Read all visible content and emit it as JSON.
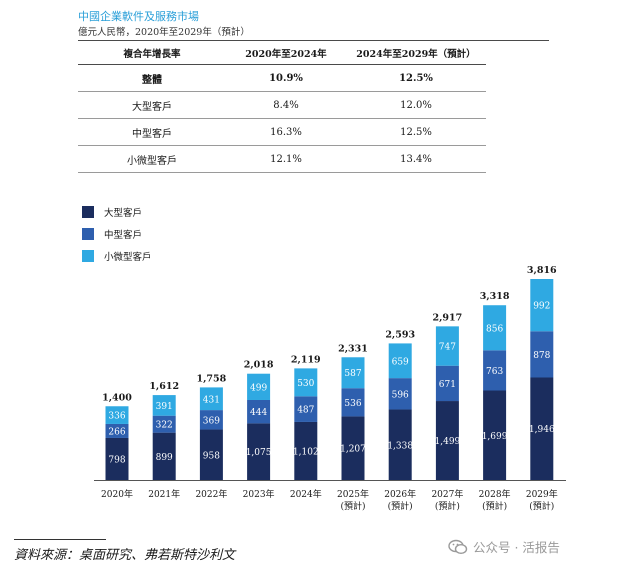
{
  "header": {
    "title": "中國企業軟件及服務市場",
    "subtitle": "億元人民幣，2020年至2029年（預計）"
  },
  "cagr_table": {
    "headers": [
      "複合年增長率",
      "2020年至2024年",
      "2024年至2029年（預計）"
    ],
    "rows": [
      {
        "label": "整體",
        "v1": "10.9%",
        "v2": "12.5%"
      },
      {
        "label": "大型客戶",
        "v1": "8.4%",
        "v2": "12.0%"
      },
      {
        "label": "中型客戶",
        "v1": "16.3%",
        "v2": "12.5%"
      },
      {
        "label": "小微型客戶",
        "v1": "12.1%",
        "v2": "13.4%"
      }
    ]
  },
  "chart_data": {
    "type": "bar",
    "stacked": true,
    "categories": [
      "2020年",
      "2021年",
      "2022年",
      "2023年",
      "2024年",
      "2025年\n(預計)",
      "2026年\n(預計)",
      "2027年\n(預計)",
      "2028年\n(預計)",
      "2029年\n(預計)"
    ],
    "series": [
      {
        "name": "大型客戶",
        "color": "#1b2d5e",
        "values": [
          798,
          899,
          958,
          1075,
          1102,
          1207,
          1338,
          1499,
          1699,
          1946
        ]
      },
      {
        "name": "中型客戶",
        "color": "#2e5fae",
        "values": [
          266,
          322,
          369,
          444,
          487,
          536,
          596,
          671,
          763,
          878
        ]
      },
      {
        "name": "小微型客戶",
        "color": "#2fa9e2",
        "values": [
          336,
          391,
          431,
          499,
          530,
          587,
          659,
          747,
          856,
          992
        ]
      }
    ],
    "totals": [
      1400,
      1612,
      1758,
      2018,
      2119,
      2331,
      2593,
      2917,
      3318,
      3816
    ],
    "value_labels": [
      [
        "798",
        "899",
        "958",
        "1,075",
        "1,102",
        "1,207",
        "1,338",
        "1,499",
        "1,699",
        "1,946"
      ],
      [
        "266",
        "322",
        "369",
        "444",
        "487",
        "536",
        "596",
        "671",
        "763",
        "878"
      ],
      [
        "336",
        "391",
        "431",
        "499",
        "530",
        "587",
        "659",
        "747",
        "856",
        "992"
      ]
    ],
    "total_labels": [
      "1,400",
      "1,612",
      "1,758",
      "2,018",
      "2,119",
      "2,331",
      "2,593",
      "2,917",
      "3,318",
      "3,816"
    ],
    "legend": [
      "大型客戶",
      "中型客戶",
      "小微型客戶"
    ],
    "legend_position": "top-left",
    "grid": false
  },
  "footer": {
    "source": "資料來源：桌面研究、弗若斯特沙利文",
    "watermark": "公众号 · 活报告"
  }
}
